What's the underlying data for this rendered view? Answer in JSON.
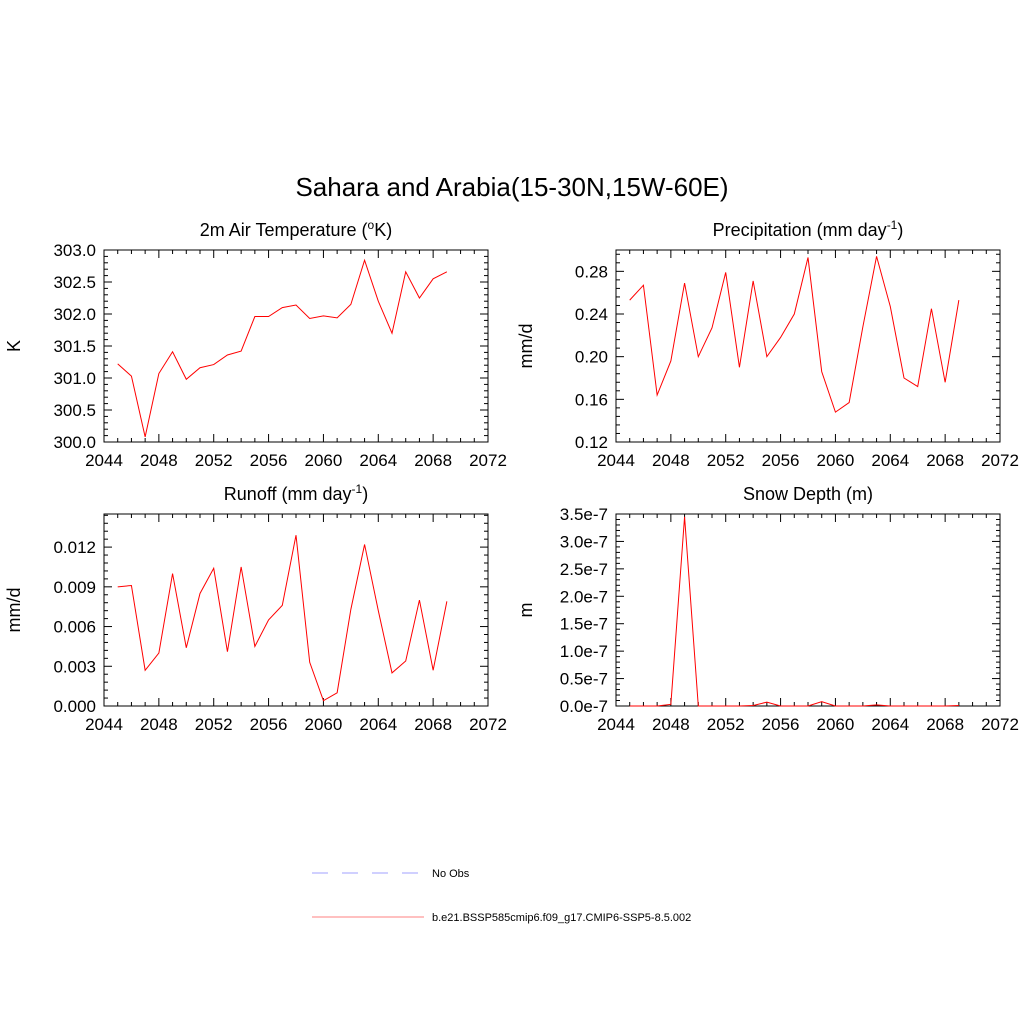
{
  "title": "Sahara and Arabia(15-30N,15W-60E)",
  "colors": {
    "model": "#ff0000",
    "obs": "#a0a0ff",
    "model_legend": "#ff8080",
    "frame": "#000000"
  },
  "legend": [
    {
      "label": "No Obs",
      "style": "dashed",
      "color": "#a0a0ff"
    },
    {
      "label": "b.e21.BSSP585cmip6.f09_g17.CMIP6-SSP5-8.5.002",
      "style": "solid",
      "color": "#ff8080"
    }
  ],
  "chart_data": [
    {
      "type": "line",
      "title": "2m Air Temperature (",
      "title_sup": "o",
      "title_end": "K)",
      "ylabel": "K",
      "xlim": [
        2044,
        2072
      ],
      "ylim": [
        300.0,
        303.0
      ],
      "xticks": [
        "2044",
        "2048",
        "2052",
        "2056",
        "2060",
        "2064",
        "2068",
        "2072"
      ],
      "yticks": [
        "300.0",
        "300.5",
        "301.0",
        "301.5",
        "302.0",
        "302.5",
        "303.0"
      ],
      "x": [
        2045,
        2046,
        2047,
        2048,
        2049,
        2050,
        2051,
        2052,
        2053,
        2054,
        2055,
        2056,
        2057,
        2058,
        2059,
        2060,
        2061,
        2062,
        2063,
        2064,
        2065,
        2066,
        2067,
        2068,
        2069
      ],
      "series": [
        {
          "values": [
            301.22,
            301.03,
            300.08,
            301.07,
            301.41,
            300.98,
            301.16,
            301.21,
            301.36,
            301.42,
            301.96,
            301.96,
            302.1,
            302.14,
            301.93,
            301.97,
            301.94,
            302.15,
            302.84,
            302.2,
            301.7,
            302.66,
            302.25,
            302.55,
            302.66
          ]
        }
      ]
    },
    {
      "type": "line",
      "title": "Precipitation (mm day",
      "title_sup": "-1",
      "title_end": ")",
      "ylabel": "mm/d",
      "xlim": [
        2044,
        2072
      ],
      "ylim": [
        0.12,
        0.3
      ],
      "xticks": [
        "2044",
        "2048",
        "2052",
        "2056",
        "2060",
        "2064",
        "2068",
        "2072"
      ],
      "yticks": [
        "0.12",
        "0.16",
        "0.20",
        "0.24",
        "0.28"
      ],
      "x": [
        2045,
        2046,
        2047,
        2048,
        2049,
        2050,
        2051,
        2052,
        2053,
        2054,
        2055,
        2056,
        2057,
        2058,
        2059,
        2060,
        2061,
        2062,
        2063,
        2064,
        2065,
        2066,
        2067,
        2068,
        2069
      ],
      "series": [
        {
          "values": [
            0.253,
            0.267,
            0.164,
            0.196,
            0.269,
            0.2,
            0.227,
            0.279,
            0.19,
            0.271,
            0.2,
            0.218,
            0.24,
            0.293,
            0.186,
            0.148,
            0.157,
            0.228,
            0.294,
            0.247,
            0.18,
            0.172,
            0.245,
            0.176,
            0.253
          ]
        }
      ]
    },
    {
      "type": "line",
      "title": "Runoff (mm day",
      "title_sup": "-1",
      "title_end": ")",
      "ylabel": "mm/d",
      "xlim": [
        2044,
        2072
      ],
      "ylim": [
        0.0,
        0.0145
      ],
      "xticks": [
        "2044",
        "2048",
        "2052",
        "2056",
        "2060",
        "2064",
        "2068",
        "2072"
      ],
      "yticks": [
        "0.000",
        "0.003",
        "0.006",
        "0.009",
        "0.012"
      ],
      "x": [
        2045,
        2046,
        2047,
        2048,
        2049,
        2050,
        2051,
        2052,
        2053,
        2054,
        2055,
        2056,
        2057,
        2058,
        2059,
        2060,
        2061,
        2062,
        2063,
        2064,
        2065,
        2066,
        2067,
        2068,
        2069
      ],
      "series": [
        {
          "values": [
            0.009,
            0.0091,
            0.0027,
            0.004,
            0.01,
            0.0044,
            0.0085,
            0.0104,
            0.0041,
            0.0105,
            0.0045,
            0.0065,
            0.0076,
            0.0129,
            0.0033,
            0.0004,
            0.001,
            0.0073,
            0.0122,
            0.0072,
            0.0025,
            0.0034,
            0.008,
            0.0027,
            0.0079
          ]
        }
      ]
    },
    {
      "type": "line",
      "title": "Snow Depth (m)",
      "title_sup": "",
      "title_end": "",
      "ylabel": "m",
      "xlim": [
        2044,
        2072
      ],
      "ylim": [
        0.0,
        3.5e-07
      ],
      "xticks": [
        "2044",
        "2048",
        "2052",
        "2056",
        "2060",
        "2064",
        "2068",
        "2072"
      ],
      "yticks": [
        "0.0e-7",
        "0.5e-7",
        "1.0e-7",
        "1.5e-7",
        "2.0e-7",
        "2.5e-7",
        "3.0e-7",
        "3.5e-7"
      ],
      "x": [
        2045,
        2046,
        2047,
        2048,
        2049,
        2050,
        2051,
        2052,
        2053,
        2054,
        2055,
        2056,
        2057,
        2058,
        2059,
        2060,
        2061,
        2062,
        2063,
        2064,
        2065,
        2066,
        2067,
        2068,
        2069
      ],
      "series": [
        {
          "values": [
            0.0,
            0.0,
            0.0,
            3e-09,
            3.45e-07,
            0.0,
            0.0,
            0.0,
            0.0,
            1e-09,
            7e-09,
            0.0,
            0.0,
            0.0,
            8e-09,
            0.0,
            0.0,
            0.0,
            2e-09,
            0.0,
            0.0,
            0.0,
            0.0,
            0.0,
            1e-09
          ]
        }
      ]
    }
  ]
}
